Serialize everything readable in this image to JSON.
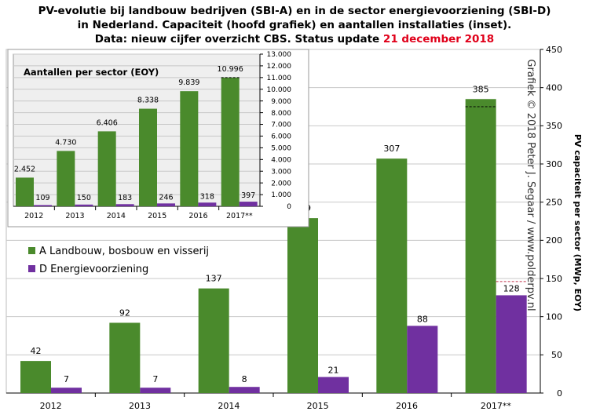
{
  "title": {
    "line1": "PV-evolutie bij landbouw bedrijven (SBI-A) en in de sector energievoorziening (SBI-D)",
    "line2": "in Nederland. Capaciteit (hoofd grafiek) en aantallen installaties (inset).",
    "line3_prefix": "Data: nieuw cijfer overzicht CBS. Status update ",
    "line3_date": "21 december 2018"
  },
  "colors": {
    "series_a": "#4a8a2c",
    "series_d": "#7030a0",
    "title_date": "#e0001a",
    "plot_bg": "#ffffff",
    "inset_bg": "#efefef",
    "grid": "#c8c8c8"
  },
  "watermark": "Grafiek © 2018 Peter J. Segaar / www.polderpv.nl",
  "chart_data": [
    {
      "id": "main",
      "type": "bar",
      "categories": [
        "2012",
        "2013",
        "2014",
        "2015",
        "2016",
        "2017**"
      ],
      "series": [
        {
          "name": "A Landbouw, bosbouw en visserij",
          "values": [
            42,
            92,
            137,
            229,
            307,
            385
          ],
          "color": "#4a8a2c"
        },
        {
          "name": "D Energievoorziening",
          "values": [
            7,
            7,
            8,
            21,
            88,
            128
          ],
          "color": "#7030a0"
        }
      ],
      "ylabel": "PV capaciteit per sector (MWp, EOY)",
      "ylim": [
        0,
        450
      ],
      "yticks": [
        0,
        50,
        100,
        150,
        200,
        250,
        300,
        350,
        400,
        450
      ],
      "grid": true,
      "y_axis_side": "right",
      "legend_placement": "left",
      "reference_markers": [
        {
          "series": 0,
          "category": "2017**",
          "value": 375
        },
        {
          "series": 1,
          "category": "2017**",
          "value": 146
        }
      ]
    },
    {
      "id": "inset",
      "type": "bar",
      "title": "Aantallen per sector (EOY)",
      "categories": [
        "2012",
        "2013",
        "2014",
        "2015",
        "2016",
        "2017**"
      ],
      "series": [
        {
          "name": "A Landbouw, bosbouw en visserij",
          "values": [
            2452,
            4730,
            6406,
            8338,
            9839,
            10996
          ],
          "labels": [
            "2.452",
            "4.730",
            "6.406",
            "8.338",
            "9.839",
            "10.996"
          ],
          "color": "#4a8a2c"
        },
        {
          "name": "D Energievoorziening",
          "values": [
            109,
            150,
            183,
            246,
            318,
            397
          ],
          "labels": [
            "109",
            "150",
            "183",
            "246",
            "318",
            "397"
          ],
          "color": "#7030a0"
        }
      ],
      "ylim": [
        0,
        13000
      ],
      "yticks": [
        0,
        1000,
        2000,
        3000,
        4000,
        5000,
        6000,
        7000,
        8000,
        9000,
        10000,
        11000,
        12000,
        13000
      ],
      "ytick_labels": [
        "0",
        "1.000",
        "2.000",
        "3.000",
        "4.000",
        "5.000",
        "6.000",
        "7.000",
        "8.000",
        "9.000",
        "10.000",
        "11.000",
        "12.000",
        "13.000"
      ],
      "grid": true,
      "y_axis_side": "right",
      "reference_markers": [
        {
          "series": 0,
          "category": "2017**",
          "value": 10996
        }
      ]
    }
  ]
}
